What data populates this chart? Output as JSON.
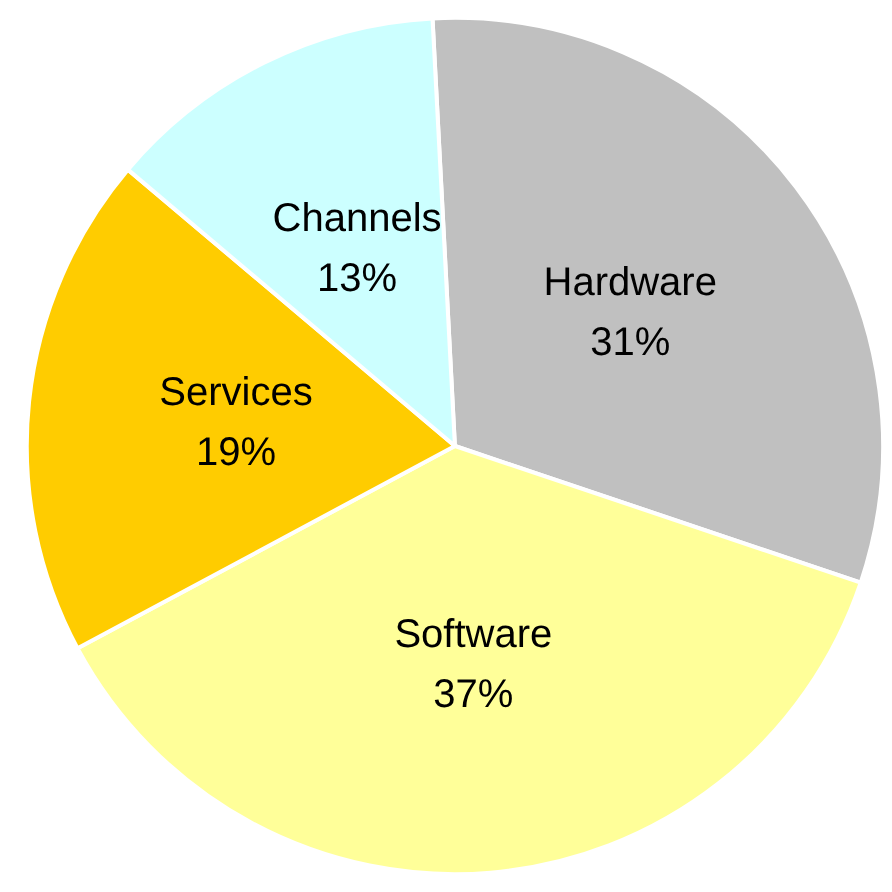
{
  "chart_data": {
    "type": "pie",
    "categories": [
      "Hardware",
      "Software",
      "Services",
      "Channels"
    ],
    "values": [
      31,
      37,
      19,
      13
    ],
    "colors": [
      "#c0c0c0",
      "#ffff99",
      "#ffcc00",
      "#ccffff"
    ],
    "value_labels": [
      "31%",
      "37%",
      "19%",
      "13%"
    ],
    "legend": false
  }
}
